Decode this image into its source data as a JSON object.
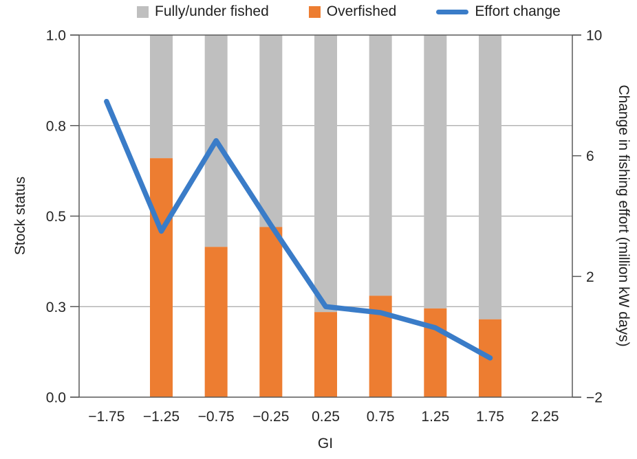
{
  "legend": {
    "items": [
      {
        "label": "Fully/under fished",
        "color": "#BFBFBF",
        "swatch": "square"
      },
      {
        "label": "Overfished",
        "color": "#ED7D31",
        "swatch": "square"
      },
      {
        "label": "Effort change",
        "color": "#3A7CC8",
        "swatch": "line"
      }
    ]
  },
  "axes": {
    "left_title": "Stock status",
    "right_title": "Change in fishing effort (million kW days)",
    "x_title": "GI"
  },
  "colors": {
    "overfished": "#ED7D31",
    "fully_under_fished": "#BFBFBF",
    "effort_line": "#3A7CC8",
    "gridline": "#A6A6A6",
    "axis": "#595959",
    "text": "#262626"
  },
  "chart_data": {
    "type": "bar",
    "subtype": "stacked-bars-with-line-overlay",
    "title": "",
    "categories": [
      "−1.75",
      "−1.25",
      "−0.75",
      "−0.25",
      "0.25",
      "0.75",
      "1.25",
      "1.75",
      "2.25"
    ],
    "series": [
      {
        "name": "Overfished",
        "kind": "bar",
        "axis": "left",
        "color": "#ED7D31",
        "values": [
          null,
          0.66,
          0.415,
          0.47,
          0.235,
          0.28,
          0.245,
          0.215,
          null
        ]
      },
      {
        "name": "Fully/under fished",
        "kind": "bar",
        "axis": "left",
        "color": "#BFBFBF",
        "values": [
          null,
          0.34,
          0.585,
          0.53,
          0.765,
          0.72,
          0.755,
          0.785,
          null
        ]
      },
      {
        "name": "Effort change",
        "kind": "line",
        "axis": "right",
        "color": "#3A7CC8",
        "values": [
          7.8,
          3.5,
          6.5,
          3.7,
          1.0,
          0.8,
          0.3,
          -0.7,
          null
        ]
      }
    ],
    "xlabel": "GI",
    "left_axis": {
      "label": "Stock status",
      "range": [
        0,
        1
      ],
      "tick_positions": [
        0,
        0.25,
        0.5,
        0.75,
        1.0
      ],
      "tick_labels": [
        "0.0",
        "0.3",
        "0.5",
        "0.8",
        "1.0"
      ]
    },
    "right_axis": {
      "label": "Change in fishing effort (million kW days)",
      "range": [
        -2,
        10
      ],
      "tick_positions": [
        -2,
        2,
        6,
        10
      ],
      "tick_labels": [
        "−2",
        "2",
        "6",
        "10"
      ]
    },
    "gridlines": [
      0.25,
      0.5,
      0.75
    ],
    "grid": true,
    "legend_position": "top",
    "bars_stack_to": 1.0
  }
}
